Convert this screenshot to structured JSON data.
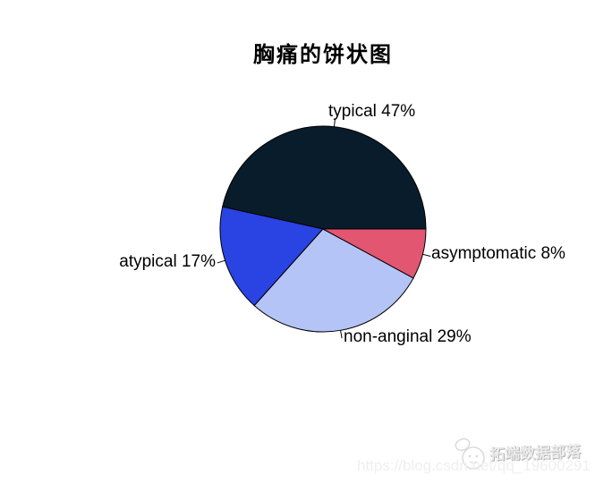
{
  "chart_data": {
    "type": "pie",
    "title": "胸痛的饼状图",
    "categories": [
      "typical",
      "atypical",
      "non-anginal",
      "asymptomatic"
    ],
    "values": [
      47,
      17,
      29,
      8
    ],
    "labels": [
      "typical 47%",
      "atypical 17%",
      "non-anginal 29%",
      "asymptomatic 8%"
    ],
    "colors": [
      "#081c2b",
      "#2a43e3",
      "#b5c4f7",
      "#e25672"
    ],
    "unit": "%",
    "start_angle_deg": 0,
    "direction": "counterclockwise",
    "legend": "none",
    "slice_border_color": "#000000",
    "label_color": "#000000"
  },
  "watermark": {
    "brand": "拓端数据部落",
    "url": "https://blog.csdn.net/qq_19600291",
    "logo_icon": "mascot-logo-icon",
    "brand_color": "#ebebeb",
    "url_color": "#efefef"
  }
}
